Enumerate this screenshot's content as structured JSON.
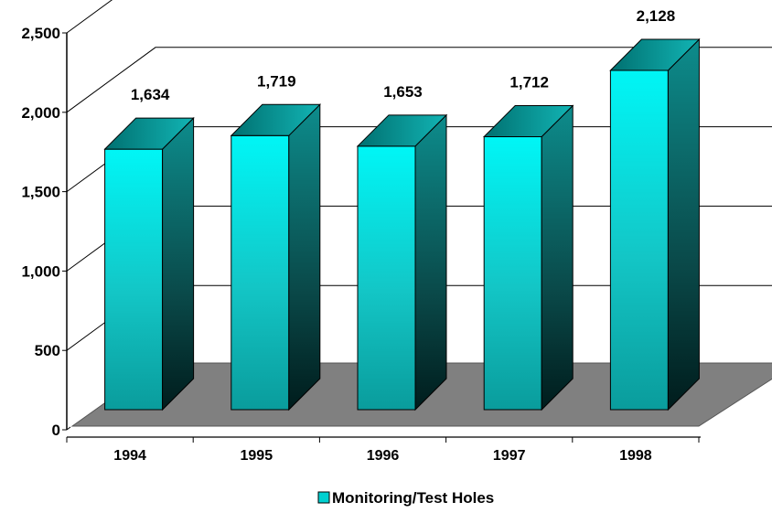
{
  "chart_data": {
    "type": "bar",
    "categories": [
      "1994",
      "1995",
      "1996",
      "1997",
      "1998"
    ],
    "series": [
      {
        "name": "Monitoring/Test Holes",
        "values": [
          1634,
          1719,
          1653,
          1712,
          2128
        ],
        "color": "#00e5ee"
      }
    ],
    "data_labels": [
      "1,634",
      "1,719",
      "1,653",
      "1,712",
      "2,128"
    ],
    "y_ticks": [
      0,
      500,
      1000,
      1500,
      2000,
      2500
    ],
    "y_tick_labels": [
      "0",
      "500",
      "1,000",
      "1,500",
      "2,000",
      "2,500"
    ],
    "ylim": [
      0,
      2500
    ],
    "grid": true,
    "style": "3d-column",
    "legend_position": "bottom",
    "floor_color": "#808080"
  }
}
